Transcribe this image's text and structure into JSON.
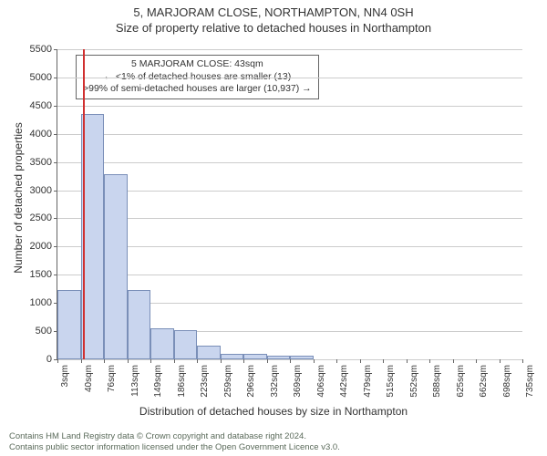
{
  "title": "5, MARJORAM CLOSE, NORTHAMPTON, NN4 0SH",
  "subtitle": "Size of property relative to detached houses in Northampton",
  "chart": {
    "type": "histogram",
    "ylabel": "Number of detached properties",
    "xlabel": "Distribution of detached houses by size in Northampton",
    "ylim": [
      0,
      5500
    ],
    "ytick_step": 500,
    "yticks": [
      0,
      500,
      1000,
      1500,
      2000,
      2500,
      3000,
      3500,
      4000,
      4500,
      5000,
      5500
    ],
    "xticks": [
      "3sqm",
      "40sqm",
      "76sqm",
      "113sqm",
      "149sqm",
      "186sqm",
      "223sqm",
      "259sqm",
      "296sqm",
      "332sqm",
      "369sqm",
      "406sqm",
      "442sqm",
      "479sqm",
      "515sqm",
      "552sqm",
      "588sqm",
      "625sqm",
      "662sqm",
      "698sqm",
      "735sqm"
    ],
    "values": [
      1230,
      4350,
      3280,
      1230,
      550,
      510,
      250,
      100,
      100,
      60,
      60,
      0,
      0,
      0,
      0,
      0,
      0,
      0,
      0,
      0
    ],
    "bar_color": "#c9d5ee",
    "bar_border_color": "#7a8fb8",
    "grid_color": "#cccccc",
    "background_color": "#ffffff",
    "marker_line": {
      "position_sqm": 43,
      "color": "#d03030"
    },
    "annotation": {
      "line1": "5 MARJORAM CLOSE: 43sqm",
      "line2": "← <1% of detached houses are smaller (13)",
      "line3": ">99% of semi-detached houses are larger (10,937) →"
    }
  },
  "footer": {
    "line1": "Contains HM Land Registry data © Crown copyright and database right 2024.",
    "line2": "Contains public sector information licensed under the Open Government Licence v3.0."
  }
}
